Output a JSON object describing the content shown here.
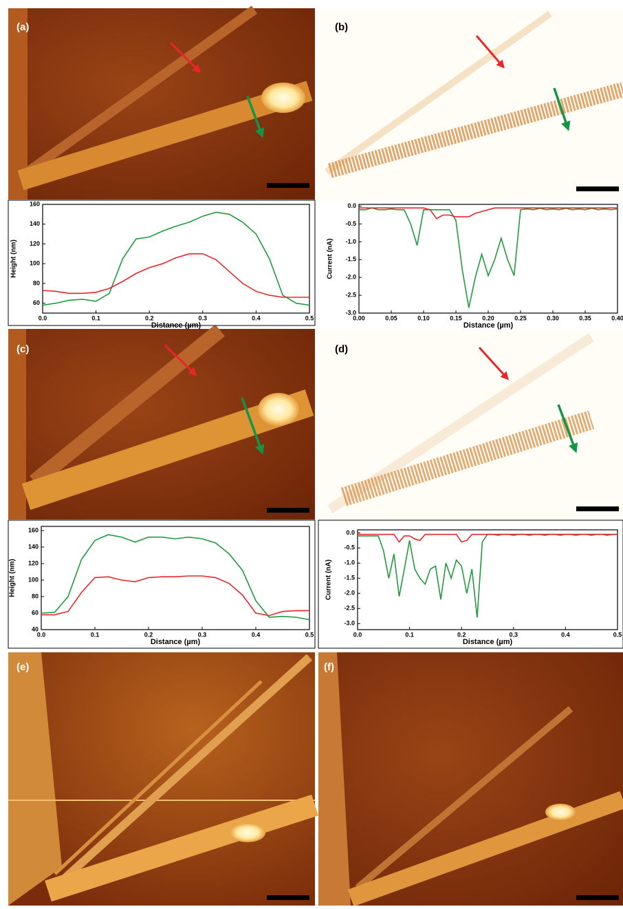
{
  "panel_labels": [
    "(a)",
    "(b)",
    "(c)",
    "(d)",
    "(e)",
    "(f)"
  ],
  "chart_data": [
    {
      "type": "line",
      "xlabel": "Distance (µm)",
      "ylabel": "Height (nm)",
      "x": [
        0,
        0.025,
        0.05,
        0.075,
        0.1,
        0.125,
        0.15,
        0.175,
        0.2,
        0.225,
        0.25,
        0.275,
        0.3,
        0.325,
        0.35,
        0.375,
        0.4,
        0.425,
        0.45,
        0.475,
        0.5
      ],
      "series": [
        {
          "color": "#1f9a3c",
          "values": [
            58,
            60,
            63,
            64,
            62,
            70,
            105,
            125,
            127,
            133,
            138,
            142,
            148,
            152,
            150,
            142,
            130,
            105,
            68,
            60,
            58
          ]
        },
        {
          "color": "#e8262a",
          "values": [
            73,
            72,
            70,
            70,
            71,
            75,
            82,
            90,
            96,
            100,
            106,
            110,
            110,
            104,
            92,
            80,
            72,
            68,
            66,
            66,
            66
          ]
        }
      ],
      "xlim": [
        0,
        0.5
      ],
      "ylim": [
        50,
        160
      ],
      "xticks": [
        {
          "value": 0,
          "label": "0.0"
        },
        0.1,
        0.2,
        0.3,
        0.4,
        0.5
      ],
      "yticks": [
        60,
        80,
        100,
        120,
        140,
        160
      ]
    },
    {
      "type": "line",
      "xlabel": "Distance (µm)",
      "ylabel": "Current (nA)",
      "x": [
        0,
        0.01,
        0.02,
        0.03,
        0.04,
        0.05,
        0.06,
        0.07,
        0.08,
        0.09,
        0.1,
        0.11,
        0.12,
        0.13,
        0.14,
        0.15,
        0.16,
        0.17,
        0.18,
        0.19,
        0.2,
        0.21,
        0.22,
        0.23,
        0.24,
        0.25,
        0.26,
        0.27,
        0.28,
        0.29,
        0.3,
        0.31,
        0.32,
        0.33,
        0.34,
        0.35,
        0.36,
        0.37,
        0.38,
        0.39,
        0.4
      ],
      "series": [
        {
          "color": "#1f9a3c",
          "values": [
            -0.1,
            -0.1,
            -0.05,
            -0.1,
            -0.1,
            -0.08,
            -0.1,
            -0.1,
            -0.5,
            -1.1,
            -0.1,
            -0.1,
            -0.1,
            -0.1,
            -0.1,
            -0.4,
            -1.8,
            -2.85,
            -2,
            -1.35,
            -1.95,
            -1.5,
            -0.9,
            -1.5,
            -1.95,
            -0.1,
            -0.08,
            -0.1,
            -0.06,
            -0.1,
            -0.08,
            -0.1,
            -0.06,
            -0.1,
            -0.08,
            -0.1,
            -0.06,
            -0.1,
            -0.08,
            -0.1,
            -0.08
          ]
        },
        {
          "color": "#e8262a",
          "values": [
            -0.05,
            -0.05,
            -0.05,
            -0.05,
            -0.05,
            -0.05,
            -0.05,
            -0.05,
            -0.05,
            -0.05,
            -0.05,
            -0.1,
            -0.35,
            -0.25,
            -0.25,
            -0.3,
            -0.3,
            -0.3,
            -0.2,
            -0.15,
            -0.1,
            -0.05,
            -0.05,
            -0.05,
            -0.05,
            -0.05,
            -0.05,
            -0.05,
            -0.05,
            -0.05,
            -0.05,
            -0.05,
            -0.05,
            -0.05,
            -0.05,
            -0.05,
            -0.05,
            -0.05,
            -0.05,
            -0.05,
            -0.05
          ]
        }
      ],
      "xlim": [
        0,
        0.4
      ],
      "ylim": [
        -3,
        0.05
      ],
      "xticks": [
        {
          "value": 0,
          "label": "0.00"
        },
        0.05,
        {
          "value": 0.1,
          "label": "0.10"
        },
        0.15,
        {
          "value": 0.2,
          "label": "0.20"
        },
        0.25,
        {
          "value": 0.3,
          "label": "0.30"
        },
        0.35,
        {
          "value": 0.4,
          "label": "0.40"
        }
      ],
      "yticks": [
        {
          "value": -3,
          "label": "-3.0"
        },
        -2.5,
        {
          "value": -2,
          "label": "-2.0"
        },
        -1.5,
        {
          "value": -1,
          "label": "-1.0"
        },
        -0.5,
        {
          "value": 0,
          "label": "0.0"
        }
      ]
    },
    {
      "type": "line",
      "xlabel": "Distance (µm)",
      "ylabel": "Height (nm)",
      "x": [
        0,
        0.025,
        0.05,
        0.075,
        0.1,
        0.125,
        0.15,
        0.175,
        0.2,
        0.225,
        0.25,
        0.275,
        0.3,
        0.325,
        0.35,
        0.375,
        0.4,
        0.425,
        0.45,
        0.475,
        0.5
      ],
      "series": [
        {
          "color": "#1f9a3c",
          "values": [
            60,
            61,
            80,
            125,
            148,
            155,
            152,
            146,
            152,
            152,
            150,
            152,
            150,
            145,
            132,
            112,
            75,
            55,
            56,
            55,
            52
          ]
        },
        {
          "color": "#e8262a",
          "values": [
            58,
            58,
            62,
            85,
            103,
            104,
            100,
            98,
            103,
            104,
            104,
            105,
            105,
            103,
            96,
            82,
            60,
            57,
            62,
            63,
            63
          ]
        }
      ],
      "xlim": [
        0,
        0.5
      ],
      "ylim": [
        40,
        165
      ],
      "xticks": [
        {
          "value": 0,
          "label": "0.0"
        },
        0.1,
        0.2,
        0.3,
        0.4,
        0.5
      ],
      "yticks": [
        40,
        60,
        80,
        100,
        120,
        140,
        160
      ]
    },
    {
      "type": "line",
      "xlabel": "Distance (µm)",
      "ylabel": "Current (nA)",
      "x": [
        0,
        0.01,
        0.02,
        0.03,
        0.04,
        0.05,
        0.06,
        0.07,
        0.08,
        0.09,
        0.1,
        0.11,
        0.12,
        0.13,
        0.14,
        0.15,
        0.16,
        0.17,
        0.18,
        0.19,
        0.2,
        0.21,
        0.22,
        0.23,
        0.24,
        0.25,
        0.26,
        0.27,
        0.28,
        0.29,
        0.3,
        0.31,
        0.32,
        0.33,
        0.34,
        0.35,
        0.36,
        0.37,
        0.38,
        0.39,
        0.4,
        0.41,
        0.42,
        0.43,
        0.44,
        0.45,
        0.46,
        0.47,
        0.48,
        0.49,
        0.5
      ],
      "series": [
        {
          "color": "#1f9a3c",
          "values": [
            -0.1,
            -0.1,
            -0.1,
            -0.1,
            -0.1,
            -0.6,
            -1.5,
            -0.7,
            -2.1,
            -1.2,
            -0.25,
            -1.2,
            -1.5,
            -1.7,
            -1.2,
            -1.1,
            -2.2,
            -1,
            -1.5,
            -0.9,
            -1.1,
            -2,
            -1.2,
            -2.8,
            -0.3,
            -0.05,
            -0.05,
            -0.08,
            -0.05,
            -0.05,
            -0.08,
            -0.05,
            -0.05,
            -0.08,
            -0.05,
            -0.05,
            -0.08,
            -0.05,
            -0.05,
            -0.08,
            -0.05,
            -0.05,
            -0.08,
            -0.05,
            -0.05,
            -0.08,
            -0.05,
            -0.05,
            -0.08,
            -0.05,
            -0.05
          ]
        },
        {
          "color": "#e8262a",
          "values": [
            -0.05,
            -0.05,
            -0.05,
            -0.05,
            -0.05,
            -0.05,
            -0.05,
            -0.05,
            -0.3,
            -0.1,
            -0.1,
            -0.2,
            -0.25,
            -0.05,
            -0.05,
            -0.05,
            -0.05,
            -0.05,
            -0.05,
            -0.05,
            -0.3,
            -0.25,
            -0.05,
            -0.05,
            -0.05,
            -0.05,
            -0.05,
            -0.05,
            -0.05,
            -0.05,
            -0.05,
            -0.05,
            -0.05,
            -0.05,
            -0.05,
            -0.05,
            -0.05,
            -0.05,
            -0.05,
            -0.05,
            -0.05,
            -0.05,
            -0.05,
            -0.05,
            -0.05,
            -0.05,
            -0.05,
            -0.05,
            -0.05,
            -0.05,
            -0.05
          ]
        }
      ],
      "xlim": [
        0,
        0.5
      ],
      "ylim": [
        -3.2,
        0.1
      ],
      "xticks": [
        {
          "value": 0,
          "label": "0.0"
        },
        0.1,
        0.2,
        0.3,
        0.4,
        0.5
      ],
      "yticks": [
        {
          "value": -3,
          "label": "-3.0"
        },
        -2.5,
        {
          "value": -2,
          "label": "-2.0"
        },
        -1.5,
        {
          "value": -1,
          "label": "-1.0"
        },
        -0.5,
        {
          "value": 0,
          "label": "0.0"
        }
      ]
    }
  ]
}
